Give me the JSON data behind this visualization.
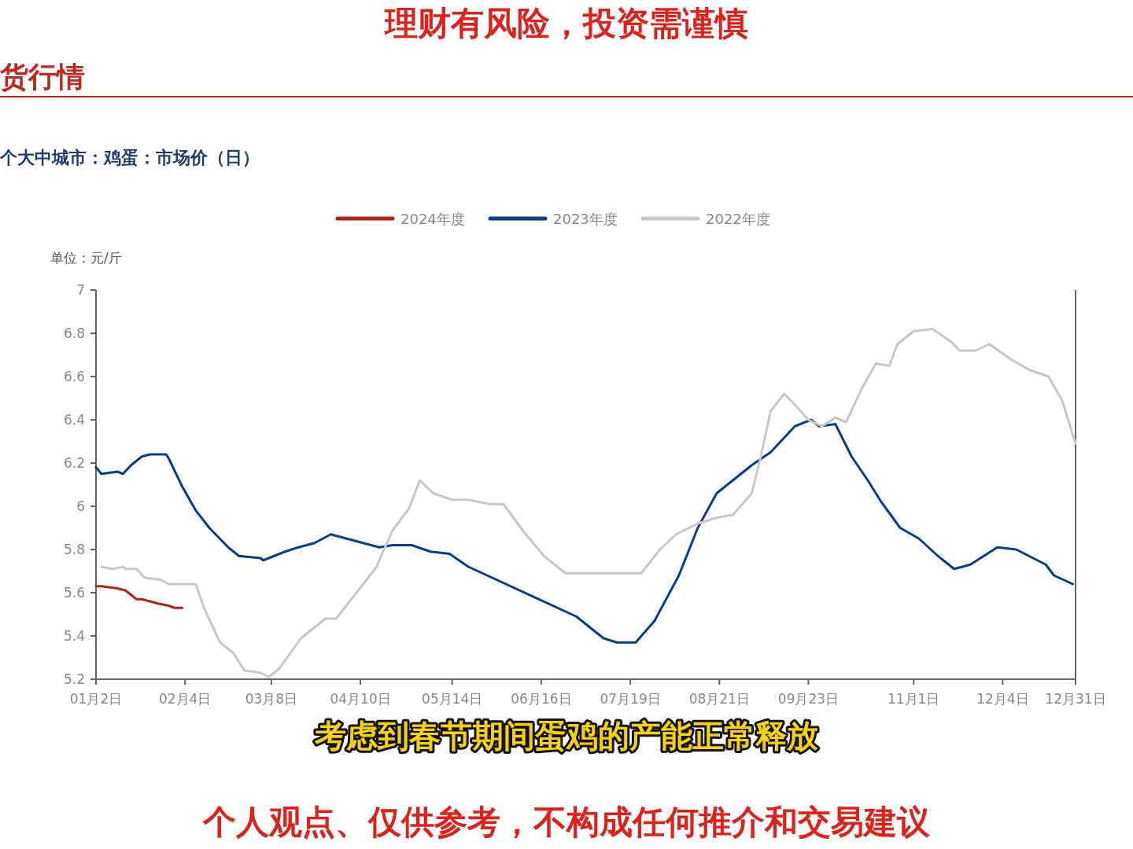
{
  "chart_data": {
    "type": "line",
    "title": "个大中城市：鸡蛋：市场价（日）",
    "ylabel": "单位：元/斤",
    "annotations": [
      "理财有风险，投资需谨慎",
      "货行情",
      "考虑到春节期间蛋鸡的产能正常释放",
      "个人观点、仅供参考，不构成任何推介和交易建议"
    ],
    "xlim": [
      "--01-02",
      "--12-31"
    ],
    "xticks": [
      {
        "value": "--01-02",
        "label": "01月2日"
      },
      {
        "value": "--02-04",
        "label": "02月4日"
      },
      {
        "value": "--03-08",
        "label": "03月8日"
      },
      {
        "value": "--04-10",
        "label": "04月10日"
      },
      {
        "value": "--05-14",
        "label": "05月14日"
      },
      {
        "value": "--06-16",
        "label": "06月16日"
      },
      {
        "value": "--07-19",
        "label": "07月19日"
      },
      {
        "value": "--08-21",
        "label": "08月21日"
      },
      {
        "value": "--09-23",
        "label": "09月23日"
      },
      {
        "value": "--11-01",
        "label": "11月1日"
      },
      {
        "value": "--12-04",
        "label": "12月4日"
      },
      {
        "value": "--12-31",
        "label": "12月31日"
      }
    ],
    "ylim": [
      5.2,
      7
    ],
    "yticks": [
      5.2,
      5.4,
      5.6,
      5.8,
      6,
      6.2,
      6.4,
      6.6,
      6.8,
      7
    ],
    "grid": false,
    "legend": "top",
    "series": [
      {
        "name": "2024年度",
        "color": "#b22418",
        "x": [
          "--01-02",
          "--01-04",
          "--01-10",
          "--01-13",
          "--01-17",
          "--01-19",
          "--01-25",
          "--01-29",
          "--01-31",
          "--02-03"
        ],
        "values": [
          5.63,
          5.63,
          5.62,
          5.61,
          5.57,
          5.57,
          5.55,
          5.54,
          5.53,
          5.53
        ]
      },
      {
        "name": "2023年度",
        "color": "#0a3d8a",
        "x": [
          "--01-02",
          "--01-04",
          "--01-10",
          "--01-12",
          "--01-15",
          "--01-19",
          "--01-22",
          "--01-28",
          "--01-29",
          "--02-03",
          "--02-08",
          "--02-13",
          "--02-20",
          "--02-24",
          "--03-04",
          "--03-05",
          "--03-13",
          "--03-18",
          "--03-24",
          "--03-30",
          "--04-05",
          "--04-11",
          "--04-17",
          "--04-22",
          "--04-29",
          "--05-06",
          "--05-13",
          "--05-20",
          "--06-29",
          "--07-09",
          "--07-14",
          "--07-21",
          "--07-28",
          "--08-06",
          "--08-13",
          "--08-20",
          "--08-26",
          "--09-02",
          "--09-09",
          "--09-18",
          "--09-24",
          "--09-27",
          "--10-03",
          "--10-09",
          "--10-15",
          "--10-20",
          "--10-27",
          "--11-03",
          "--11-10",
          "--11-16",
          "--11-22",
          "--12-02",
          "--12-09",
          "--12-20",
          "--12-23",
          "--12-30"
        ],
        "values": [
          6.18,
          6.15,
          6.16,
          6.15,
          6.19,
          6.23,
          6.24,
          6.24,
          6.22,
          6.09,
          5.98,
          5.9,
          5.81,
          5.77,
          5.76,
          5.75,
          5.79,
          5.81,
          5.83,
          5.87,
          5.85,
          5.83,
          5.81,
          5.82,
          5.82,
          5.79,
          5.78,
          5.72,
          5.49,
          5.39,
          5.37,
          5.37,
          5.47,
          5.68,
          5.9,
          6.06,
          6.12,
          6.19,
          6.25,
          6.37,
          6.4,
          6.37,
          6.38,
          6.23,
          6.12,
          6.02,
          5.9,
          5.85,
          5.77,
          5.71,
          5.73,
          5.81,
          5.8,
          5.73,
          5.68,
          5.64
        ]
      },
      {
        "name": "2022年度",
        "color": "#c8c8c8",
        "x": [
          "--01-04",
          "--01-08",
          "--01-12",
          "--01-13",
          "--01-17",
          "--01-20",
          "--01-26",
          "--01-29",
          "--02-08",
          "--02-11",
          "--02-17",
          "--02-22",
          "--02-26",
          "--03-04",
          "--03-07",
          "--03-11",
          "--03-19",
          "--03-28",
          "--04-01",
          "--04-16",
          "--04-18",
          "--04-22",
          "--04-28",
          "--05-02",
          "--05-07",
          "--05-14",
          "--05-20",
          "--05-28",
          "--06-02",
          "--06-09",
          "--06-17",
          "--06-25",
          "--07-23",
          "--07-30",
          "--08-05",
          "--08-13",
          "--08-21",
          "--08-26",
          "--09-02",
          "--09-05",
          "--09-09",
          "--09-14",
          "--09-18",
          "--09-23",
          "--09-28",
          "--10-03",
          "--10-07",
          "--10-13",
          "--10-18",
          "--10-23",
          "--10-26",
          "--11-01",
          "--11-08",
          "--11-15",
          "--11-18",
          "--11-24",
          "--11-29",
          "--12-07",
          "--12-14",
          "--12-21",
          "--12-26",
          "--12-31"
        ],
        "values": [
          5.72,
          5.71,
          5.72,
          5.71,
          5.71,
          5.67,
          5.66,
          5.64,
          5.64,
          5.53,
          5.37,
          5.32,
          5.24,
          5.23,
          5.21,
          5.25,
          5.39,
          5.48,
          5.48,
          5.72,
          5.78,
          5.89,
          5.99,
          6.12,
          6.06,
          6.03,
          6.03,
          6.01,
          6.01,
          5.89,
          5.77,
          5.69,
          5.69,
          5.8,
          5.87,
          5.92,
          5.95,
          5.96,
          6.06,
          6.21,
          6.44,
          6.52,
          6.47,
          6.4,
          6.37,
          6.41,
          6.39,
          6.55,
          6.66,
          6.65,
          6.75,
          6.81,
          6.82,
          6.76,
          6.72,
          6.72,
          6.75,
          6.68,
          6.63,
          6.6,
          6.49,
          6.29
        ]
      }
    ]
  }
}
